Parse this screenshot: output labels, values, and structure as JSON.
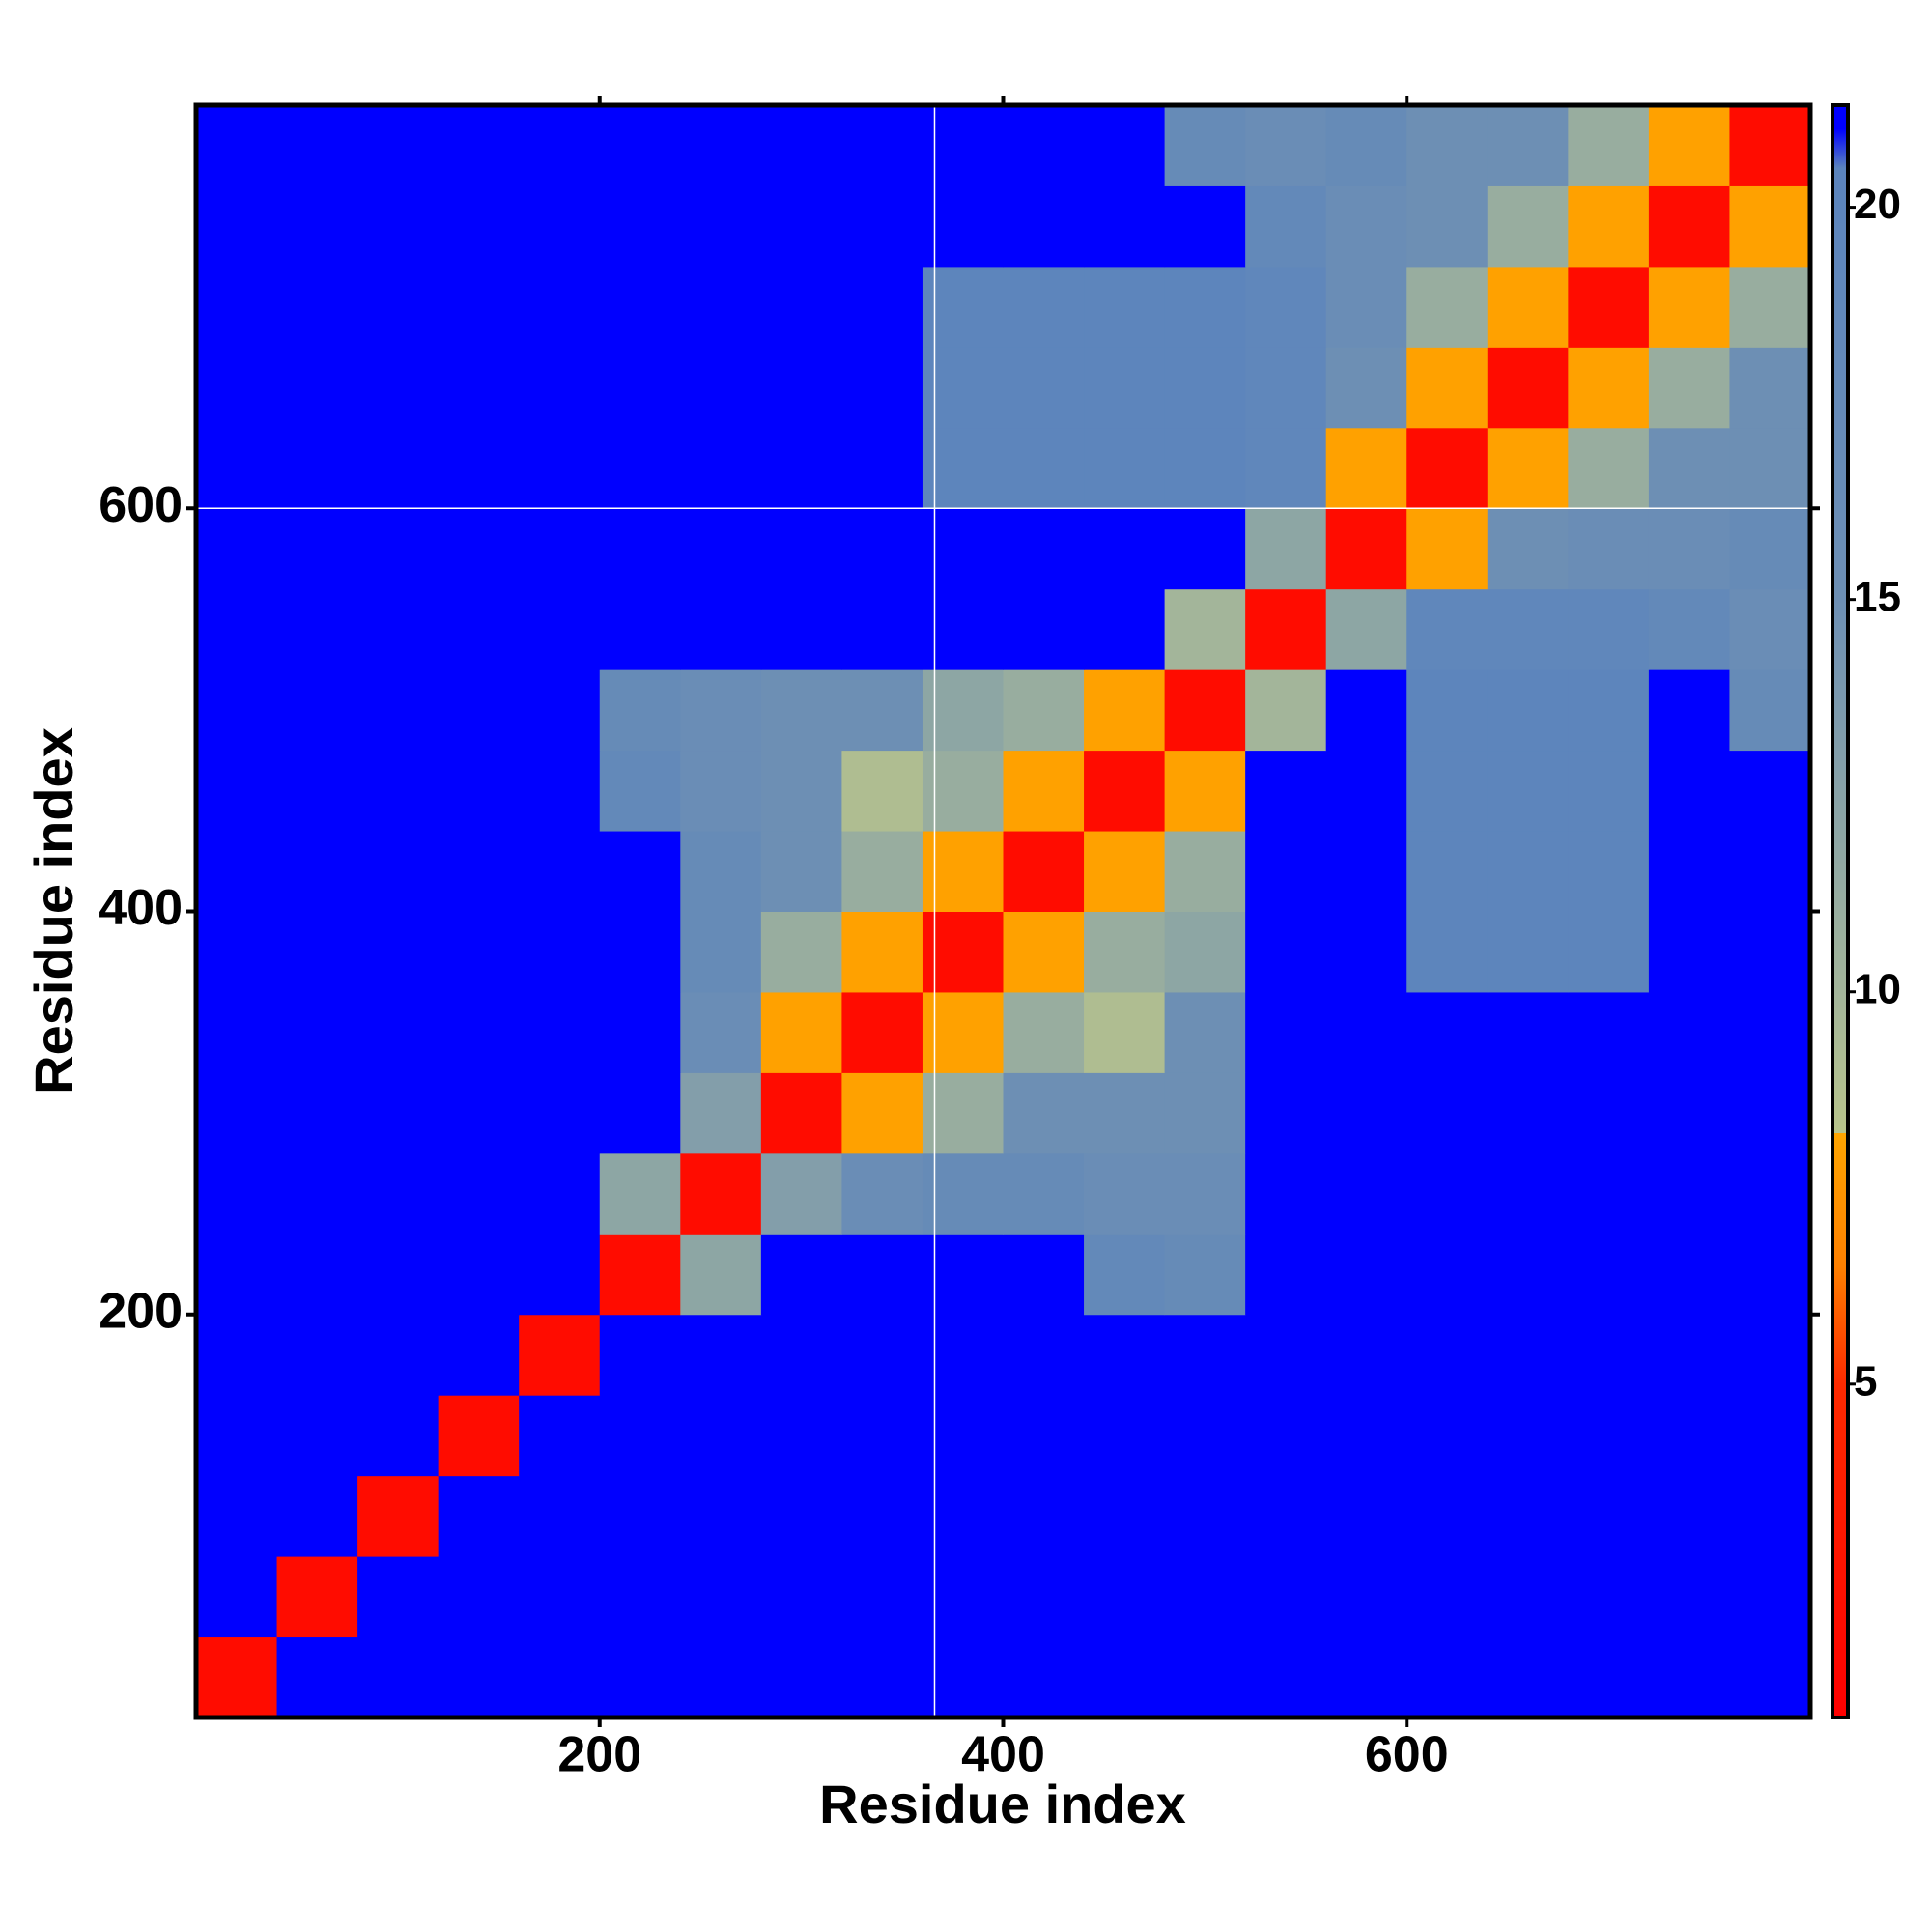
{
  "chart_data": {
    "type": "heatmap",
    "xlabel": "Residue index",
    "ylabel": "Residue index",
    "xlim": [
      0,
      800
    ],
    "ylim": [
      0,
      800
    ],
    "xticks": [
      200,
      400,
      600
    ],
    "yticks": [
      200,
      400,
      600
    ],
    "xbins": [
      0,
      40,
      80,
      120,
      160,
      200,
      240,
      280,
      320,
      360,
      400,
      440,
      480,
      520,
      560,
      600,
      640,
      680,
      720,
      760,
      800
    ],
    "ybins": [
      0,
      40,
      80,
      120,
      160,
      200,
      240,
      280,
      320,
      360,
      400,
      440,
      480,
      520,
      560,
      600,
      640,
      680,
      720,
      760,
      800
    ],
    "values": [
      [
        2,
        21.5,
        21.5,
        21.5,
        21.5,
        21.5,
        21.5,
        21.5,
        21.5,
        21.5,
        21.5,
        21.5,
        21.5,
        21.5,
        21.5,
        21.5,
        21.5,
        21.5,
        21.5,
        21.5
      ],
      [
        21.5,
        2,
        21.5,
        21.5,
        21.5,
        21.5,
        21.5,
        21.5,
        21.5,
        21.5,
        21.5,
        21.5,
        21.5,
        21.5,
        21.5,
        21.5,
        21.5,
        21.5,
        21.5,
        21.5
      ],
      [
        21.5,
        21.5,
        2,
        21.5,
        21.5,
        21.5,
        21.5,
        21.5,
        21.5,
        21.5,
        21.5,
        21.5,
        21.5,
        21.5,
        21.5,
        21.5,
        21.5,
        21.5,
        21.5,
        21.5
      ],
      [
        21.5,
        21.5,
        21.5,
        2,
        21.5,
        21.5,
        21.5,
        21.5,
        21.5,
        21.5,
        21.5,
        21.5,
        21.5,
        21.5,
        21.5,
        21.5,
        21.5,
        21.5,
        21.5,
        21.5
      ],
      [
        21.5,
        21.5,
        21.5,
        21.5,
        2,
        21.5,
        21.5,
        21.5,
        21.5,
        21.5,
        21.5,
        21.5,
        21.5,
        21.5,
        21.5,
        21.5,
        21.5,
        21.5,
        21.5,
        21.5
      ],
      [
        21.5,
        21.5,
        21.5,
        21.5,
        21.5,
        2,
        12,
        21.5,
        21.5,
        21.5,
        21.5,
        18,
        17,
        21.5,
        21.5,
        21.5,
        21.5,
        21.5,
        21.5,
        21.5
      ],
      [
        21.5,
        21.5,
        21.5,
        21.5,
        21.5,
        12,
        2,
        13,
        16,
        17,
        17,
        16,
        16,
        21.5,
        21.5,
        21.5,
        21.5,
        21.5,
        21.5,
        21.5
      ],
      [
        21.5,
        21.5,
        21.5,
        21.5,
        21.5,
        21.5,
        13,
        2,
        8,
        11,
        15,
        15,
        15,
        21.5,
        21.5,
        21.5,
        21.5,
        21.5,
        21.5,
        21.5
      ],
      [
        21.5,
        21.5,
        21.5,
        21.5,
        21.5,
        21.5,
        16,
        8,
        2,
        8,
        11,
        9,
        15,
        21.5,
        21.5,
        21.5,
        21.5,
        21.5,
        21.5,
        21.5
      ],
      [
        21.5,
        21.5,
        21.5,
        21.5,
        21.5,
        21.5,
        17,
        11,
        8,
        2,
        8,
        11,
        12,
        21.5,
        21.5,
        20,
        20,
        20,
        21.5,
        21.5
      ],
      [
        21.5,
        21.5,
        21.5,
        21.5,
        21.5,
        21.5,
        17,
        15,
        11,
        8,
        2,
        8,
        11,
        21.5,
        21.5,
        20,
        20,
        20,
        21.5,
        21.5
      ],
      [
        21.5,
        21.5,
        21.5,
        21.5,
        21.5,
        18,
        16,
        15,
        9,
        11,
        8,
        2,
        8,
        21.5,
        21.5,
        20,
        20,
        20,
        21.5,
        21.5
      ],
      [
        21.5,
        21.5,
        21.5,
        21.5,
        21.5,
        17,
        16,
        15,
        15,
        12,
        11,
        8,
        2,
        10,
        21.5,
        20,
        20,
        20,
        21.5,
        17
      ],
      [
        21.5,
        21.5,
        21.5,
        21.5,
        21.5,
        21.5,
        21.5,
        21.5,
        21.5,
        21.5,
        21.5,
        21.5,
        10,
        2,
        12,
        19,
        19,
        19,
        18,
        16
      ],
      [
        21.5,
        21.5,
        21.5,
        21.5,
        21.5,
        21.5,
        21.5,
        21.5,
        21.5,
        21.5,
        21.5,
        21.5,
        21.5,
        12,
        2,
        8,
        15,
        16,
        16,
        17
      ],
      [
        21.5,
        21.5,
        21.5,
        21.5,
        21.5,
        21.5,
        21.5,
        21.5,
        21.5,
        20,
        20,
        20,
        20,
        19,
        8,
        2,
        8,
        11,
        15,
        15
      ],
      [
        21.5,
        21.5,
        21.5,
        21.5,
        21.5,
        21.5,
        21.5,
        21.5,
        21.5,
        20,
        20,
        20,
        20,
        19,
        15,
        8,
        2,
        8,
        11,
        15
      ],
      [
        21.5,
        21.5,
        21.5,
        21.5,
        21.5,
        21.5,
        21.5,
        21.5,
        21.5,
        20,
        20,
        20,
        20,
        19,
        16,
        11,
        8,
        2,
        8,
        11
      ],
      [
        21.5,
        21.5,
        21.5,
        21.5,
        21.5,
        21.5,
        21.5,
        21.5,
        21.5,
        21.5,
        21.5,
        21.5,
        21.5,
        18,
        16,
        15,
        11,
        8,
        2,
        8
      ],
      [
        21.5,
        21.5,
        21.5,
        21.5,
        21.5,
        21.5,
        21.5,
        21.5,
        21.5,
        21.5,
        21.5,
        21.5,
        17,
        16,
        17,
        15,
        15,
        11,
        8,
        2
      ]
    ],
    "clim": [
      0.75,
      21.3
    ],
    "cticks": [
      5,
      10,
      15,
      20
    ],
    "colorscale": [
      [
        0.75,
        "#ff0000"
      ],
      [
        5,
        "#ff2a00"
      ],
      [
        6.5,
        "#ff8000"
      ],
      [
        8.2,
        "#ffa500"
      ],
      [
        8.2,
        "#b8c48a"
      ],
      [
        10,
        "#a3b59a"
      ],
      [
        15,
        "#6d8fb4"
      ],
      [
        20.5,
        "#5b84bd"
      ],
      [
        21,
        "#0000ff"
      ],
      [
        21.3,
        "#0000ff"
      ]
    ],
    "vlines": [
      366
    ],
    "hlines": [
      600
    ],
    "line_color": "#ffffff"
  }
}
